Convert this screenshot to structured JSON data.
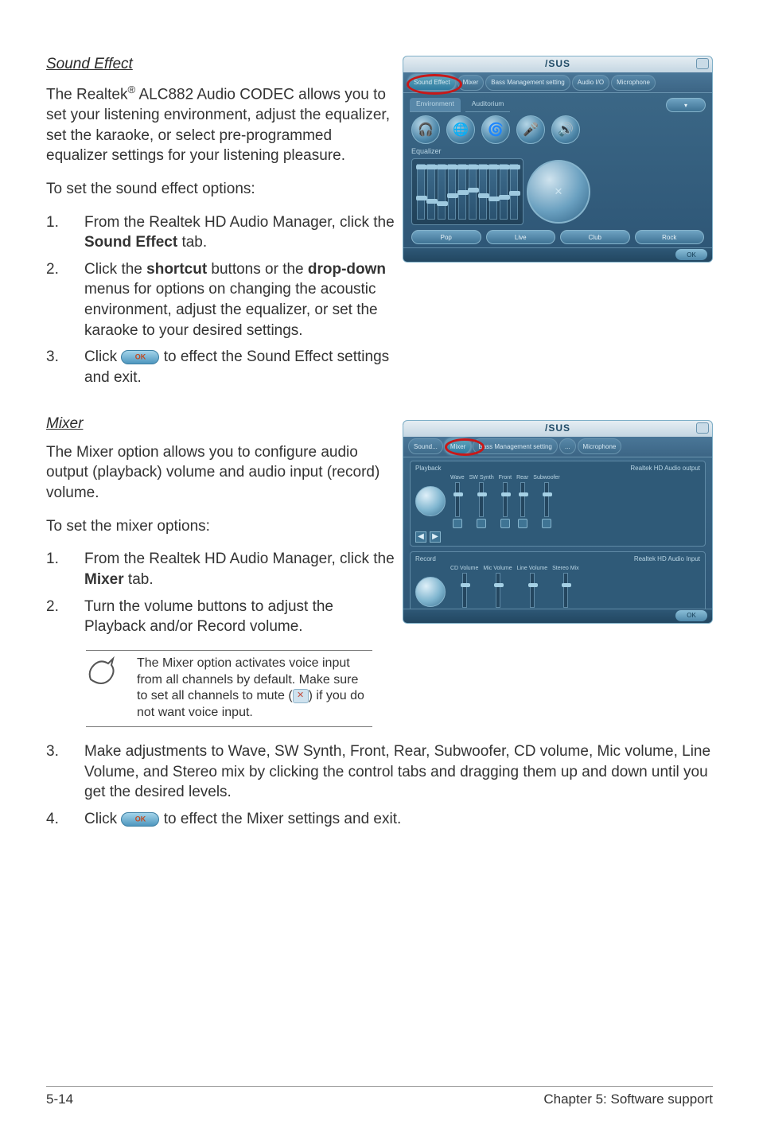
{
  "soundEffect": {
    "title": "Sound Effect",
    "intro_pre": "The Realtek",
    "intro_sup": "®",
    "intro_post": " ALC882 Audio CODEC allows you to set your listening environment, adjust the equalizer, set the karaoke, or select pre-programmed equalizer settings for your listening pleasure.",
    "lead": "To set the sound effect options:",
    "step1_pre": "From the Realtek HD Audio Manager, click the ",
    "step1_bold": "Sound Effect",
    "step1_post": " tab.",
    "step2_pre": "Click the ",
    "step2_bold1": "shortcut",
    "step2_mid": " buttons or the ",
    "step2_bold2": "drop-down",
    "step2_post": " menus for options on changing the acoustic environment, adjust the equalizer, or set the karaoke to your desired settings.",
    "step3_pre": "Click ",
    "step3_post": " to effect the Sound Effect settings and exit."
  },
  "mixer": {
    "title": "Mixer",
    "intro": "The Mixer option allows you to configure audio output (playback) volume and audio input (record) volume.",
    "lead": "To set the mixer options:",
    "step1_pre": "From the Realtek HD Audio Manager, click the ",
    "step1_bold": "Mixer",
    "step1_post": " tab.",
    "step2": "Turn the volume buttons to adjust the Playback and/or Record volume.",
    "note_pre": "The Mixer option activates voice input from all channels by default. Make sure to set all channels to mute (",
    "note_post": ") if  you do not want voice input.",
    "step3": "Make adjustments to Wave, SW Synth, Front, Rear, Subwoofer,  CD volume, Mic volume, Line Volume, and Stereo mix by clicking the control tabs and dragging them up and down until you get the desired levels.",
    "step4_pre": "Click ",
    "step4_post": " to effect the Mixer settings and exit."
  },
  "panel": {
    "logo": "/SUS",
    "tabs_sound": [
      "Sound Effect",
      "Mixer",
      "Bass Management setting",
      "Audio I/O",
      "Microphone"
    ],
    "tabs_mixer": [
      "Sound...",
      "Mixer",
      "Bass Management setting",
      "...",
      "Microphone"
    ],
    "sub_sound": [
      "Environment",
      "Auditorium"
    ],
    "eq_label": "Equalizer",
    "btns": [
      "Pop",
      "Live",
      "Club",
      "Rock"
    ],
    "ok": "OK",
    "icons": [
      "🎧",
      "🌐",
      "🌀",
      "🎤",
      "🔊"
    ],
    "mixer_playback": "Playback",
    "mixer_record": "Record",
    "mixer_pb_label": "Realtek HD Audio output",
    "mixer_rec_label": "Realtek HD Audio Input",
    "mixer_cols_pb": [
      "Wave",
      "SW Synth",
      "Front",
      "Rear",
      "Subwoofer"
    ],
    "mixer_cols_rec": [
      "CD Volume",
      "Mic Volume",
      "Line Volume",
      "Stereo Mix"
    ]
  },
  "colors": {
    "red": "#c81818",
    "panel_top": "#3e6b8a",
    "panel_bottom": "#2d5575"
  },
  "eq_heights_pct": [
    40,
    35,
    30,
    45,
    50,
    55,
    45,
    38,
    42,
    48
  ],
  "footer": {
    "left": "5-14",
    "right": "Chapter 5: Software support"
  }
}
